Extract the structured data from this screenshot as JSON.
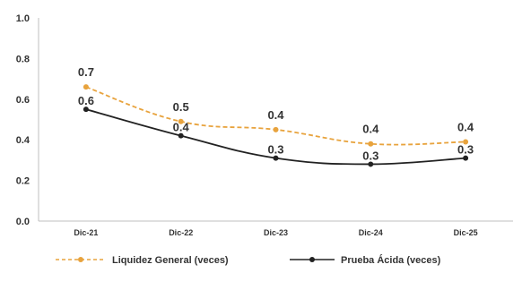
{
  "chart_data": {
    "type": "line",
    "categories": [
      "Dic-21",
      "Dic-22",
      "Dic-23",
      "Dic-24",
      "Dic-25"
    ],
    "ylim": [
      0,
      1.0
    ],
    "yticks": [
      "0.0",
      "0.2",
      "0.4",
      "0.6",
      "0.8",
      "1.0"
    ],
    "grid": false,
    "legend_position": "bottom",
    "series": [
      {
        "name": "Liquidez General (veces)",
        "values": [
          0.66,
          0.49,
          0.45,
          0.38,
          0.39
        ],
        "labels": [
          "0.7",
          "0.5",
          "0.4",
          "0.4",
          "0.4"
        ],
        "color": "#E8A33D",
        "style": "dashed"
      },
      {
        "name": "Prueba Ácida (veces)",
        "values": [
          0.55,
          0.42,
          0.31,
          0.28,
          0.31
        ],
        "labels": [
          "0.6",
          "0.4",
          "0.3",
          "0.3",
          "0.3"
        ],
        "color": "#222222",
        "style": "solid"
      }
    ]
  }
}
